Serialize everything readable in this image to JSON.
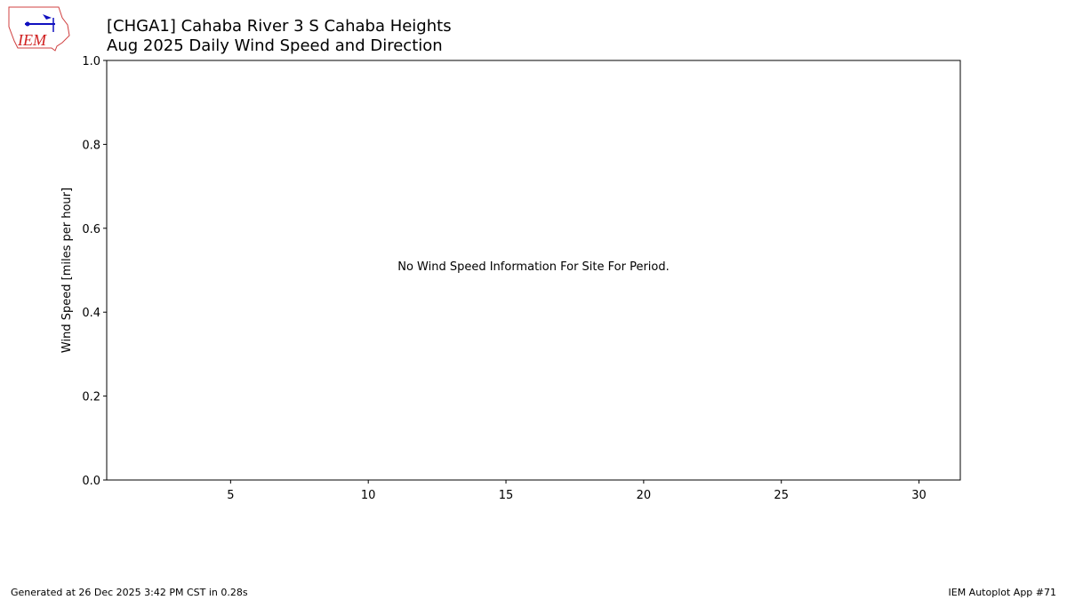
{
  "logo_text": "IEM",
  "chart_data": {
    "type": "line",
    "title": "[CHGA1] Cahaba River 3 S Cahaba Heights",
    "subtitle": "Aug 2025 Daily Wind Speed and Direction",
    "y_label": "Wind Speed [miles per hour]",
    "annotation": "No Wind Speed Information For Site For Period.",
    "xlim": [
      0.5,
      31.5
    ],
    "xticks": [
      5,
      10,
      15,
      20,
      25,
      30
    ],
    "ylim": [
      0,
      1
    ],
    "yticks": [
      {
        "value": 0,
        "label": "0.0"
      },
      0.2,
      0.4,
      0.6,
      0.8,
      {
        "value": 1,
        "label": "1.0"
      }
    ],
    "grid": false
  },
  "footer": {
    "left": "Generated at 26 Dec 2025 3:42 PM CST in 0.28s",
    "right": "IEM Autoplot App #71"
  }
}
